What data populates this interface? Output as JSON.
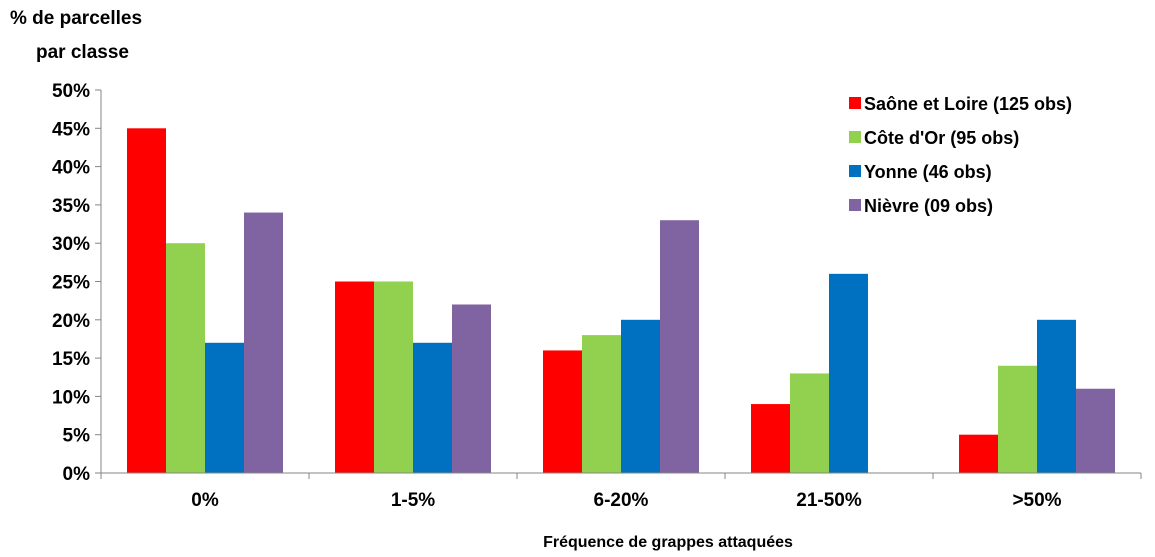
{
  "chart_data": {
    "type": "bar",
    "ylabel_lines": [
      "% de parcelles",
      "par classe"
    ],
    "xlabel": "Fréquence de grappes attaquées",
    "categories": [
      "0%",
      "1-5%",
      "6-20%",
      "21-50%",
      ">50%"
    ],
    "y_ticks": [
      "0%",
      "5%",
      "10%",
      "15%",
      "20%",
      "25%",
      "30%",
      "35%",
      "40%",
      "45%",
      "50%"
    ],
    "ylim": [
      0,
      50
    ],
    "grid": false,
    "legend_position": "top-right",
    "series": [
      {
        "name": "Saône et Loire (125 obs)",
        "color": "#ff0000",
        "values": [
          45,
          25,
          16,
          9,
          5
        ]
      },
      {
        "name": "Côte d'Or (95 obs)",
        "color": "#92d050",
        "values": [
          30,
          25,
          18,
          13,
          14
        ]
      },
      {
        "name": "Yonne (46 obs)",
        "color": "#0070c0",
        "values": [
          17,
          17,
          20,
          26,
          20
        ]
      },
      {
        "name": "Nièvre (09 obs)",
        "color": "#8064a2",
        "values": [
          34,
          22,
          33,
          0,
          11
        ]
      }
    ]
  }
}
